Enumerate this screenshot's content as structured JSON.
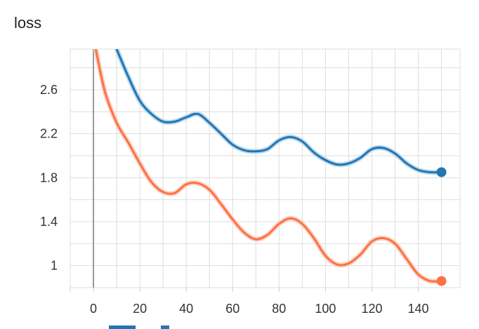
{
  "chart_data": {
    "type": "line",
    "title": "loss",
    "xlabel": "",
    "ylabel": "",
    "xlim": [
      -10,
      158
    ],
    "ylim": [
      0.8,
      2.97
    ],
    "x_ticks": [
      0,
      20,
      40,
      60,
      80,
      100,
      120,
      140
    ],
    "y_ticks": [
      1,
      1.4,
      1.8,
      2.2,
      2.6
    ],
    "y_tick_labels": [
      "1",
      "1.4",
      "1.8",
      "2.2",
      "2.6"
    ],
    "x_tick_labels": [
      "0",
      "20",
      "40",
      "60",
      "80",
      "100",
      "120",
      "140"
    ],
    "grid": true,
    "series": [
      {
        "color": "#1f77b4",
        "shadow_color": "#aecde8",
        "x": [
          10,
          15,
          20,
          25,
          30,
          35,
          40,
          45,
          50,
          55,
          60,
          65,
          70,
          75,
          80,
          85,
          90,
          95,
          100,
          105,
          110,
          115,
          120,
          125,
          130,
          135,
          140,
          145,
          150
        ],
        "y": [
          2.97,
          2.72,
          2.5,
          2.38,
          2.31,
          2.31,
          2.35,
          2.38,
          2.3,
          2.2,
          2.1,
          2.05,
          2.04,
          2.06,
          2.14,
          2.17,
          2.13,
          2.03,
          1.96,
          1.92,
          1.93,
          1.98,
          2.06,
          2.07,
          2.02,
          1.93,
          1.87,
          1.85,
          1.85
        ],
        "last": [
          150,
          1.85
        ]
      },
      {
        "color": "#ff7043",
        "shadow_color": "#f8c9b8",
        "x": [
          1,
          5,
          10,
          15,
          20,
          25,
          30,
          35,
          40,
          45,
          50,
          55,
          60,
          65,
          70,
          75,
          80,
          85,
          90,
          95,
          100,
          105,
          110,
          115,
          120,
          125,
          130,
          135,
          140,
          145,
          150
        ],
        "y": [
          2.97,
          2.58,
          2.3,
          2.12,
          1.93,
          1.76,
          1.67,
          1.66,
          1.74,
          1.75,
          1.69,
          1.56,
          1.42,
          1.3,
          1.24,
          1.28,
          1.38,
          1.43,
          1.38,
          1.25,
          1.09,
          1.01,
          1.02,
          1.1,
          1.22,
          1.25,
          1.2,
          1.06,
          0.92,
          0.86,
          0.86
        ],
        "last": [
          150,
          0.86
        ]
      }
    ]
  }
}
